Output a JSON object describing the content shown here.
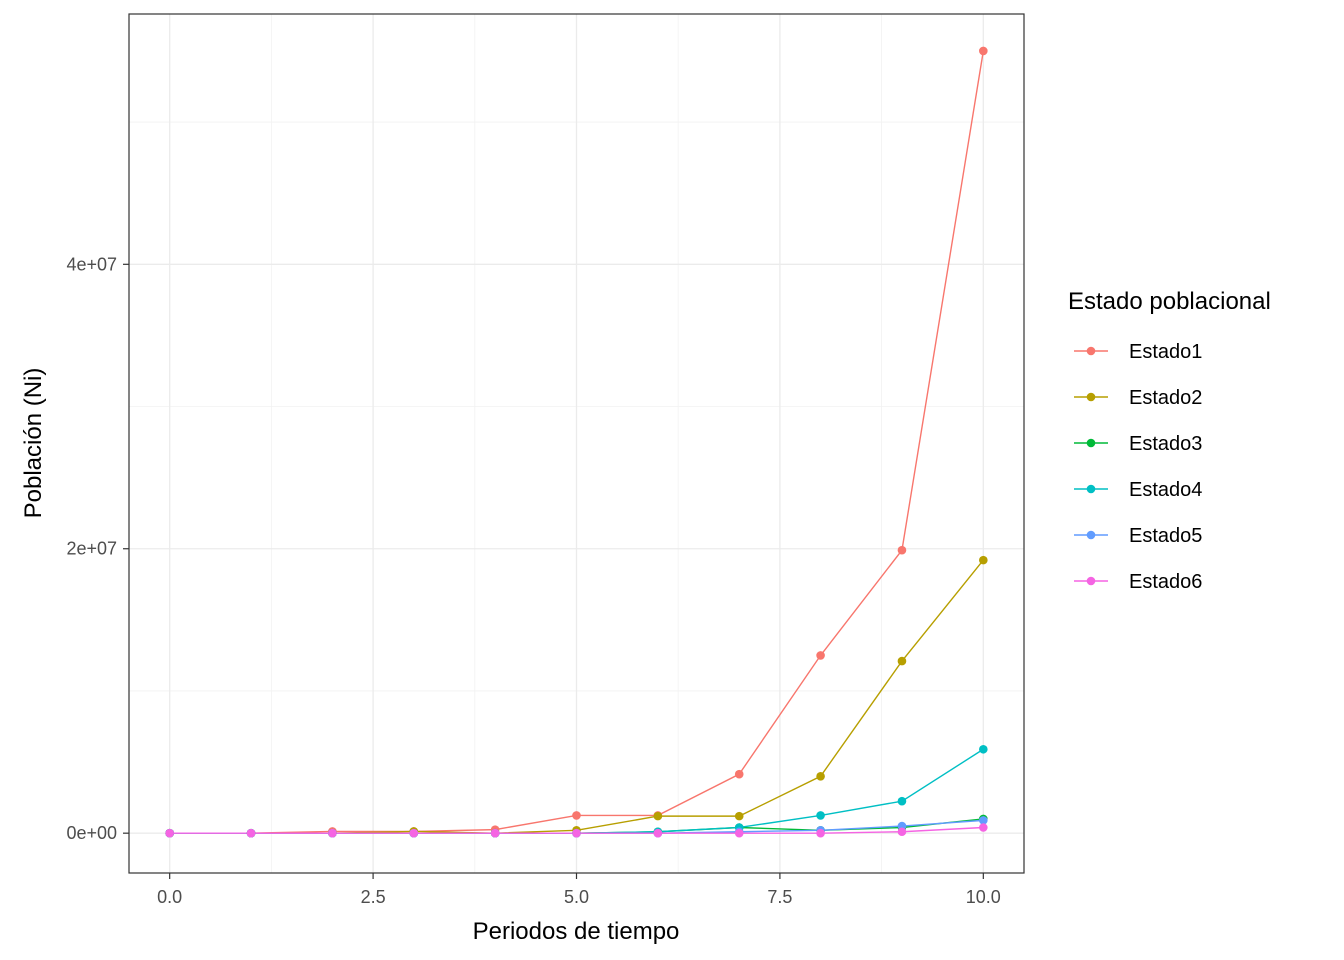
{
  "chart_data": {
    "type": "line",
    "title": "",
    "xlabel": "Periodos de tiempo",
    "ylabel": "Población (Ni)",
    "xlim": [
      -0.5,
      10.5
    ],
    "ylim": [
      -2800000,
      57600000
    ],
    "x_ticks": [
      0,
      2.5,
      5,
      7.5,
      10
    ],
    "x_tick_labels": [
      "0.0",
      "2.5",
      "5.0",
      "7.5",
      "10.0"
    ],
    "y_ticks": [
      0,
      20000000,
      40000000
    ],
    "y_tick_labels": [
      "0e+00",
      "2e+07",
      "4e+07"
    ],
    "y_minor_ticks": [
      10000000,
      30000000,
      50000000
    ],
    "x_minor_ticks": [
      1.25,
      3.75,
      6.25,
      8.75
    ],
    "grid": true,
    "legend": {
      "title": "Estado poblacional",
      "position": "right"
    },
    "x": [
      0,
      1,
      2,
      3,
      4,
      5,
      6,
      7,
      8,
      9,
      10
    ],
    "series": [
      {
        "name": "Estado1",
        "color": "#F8766D",
        "values": [
          0,
          0,
          120000,
          120000,
          250000,
          1250000,
          1250000,
          4150000,
          12500000,
          19900000,
          55000000
        ]
      },
      {
        "name": "Estado2",
        "color": "#B79F00",
        "values": [
          0,
          0,
          0,
          120000,
          0,
          200000,
          1200000,
          1200000,
          4000000,
          12100000,
          19200000
        ]
      },
      {
        "name": "Estado3",
        "color": "#00BA38",
        "values": [
          0,
          0,
          0,
          0,
          0,
          0,
          100000,
          400000,
          200000,
          400000,
          1000000
        ]
      },
      {
        "name": "Estado4",
        "color": "#00BFC4",
        "values": [
          0,
          0,
          0,
          0,
          0,
          0,
          100000,
          400000,
          1250000,
          2250000,
          5900000
        ]
      },
      {
        "name": "Estado5",
        "color": "#619CFF",
        "values": [
          0,
          0,
          0,
          0,
          0,
          0,
          0,
          100000,
          200000,
          500000,
          900000
        ]
      },
      {
        "name": "Estado6",
        "color": "#F564E3",
        "values": [
          0,
          0,
          0,
          0,
          0,
          0,
          0,
          0,
          0,
          100000,
          400000
        ]
      }
    ]
  }
}
